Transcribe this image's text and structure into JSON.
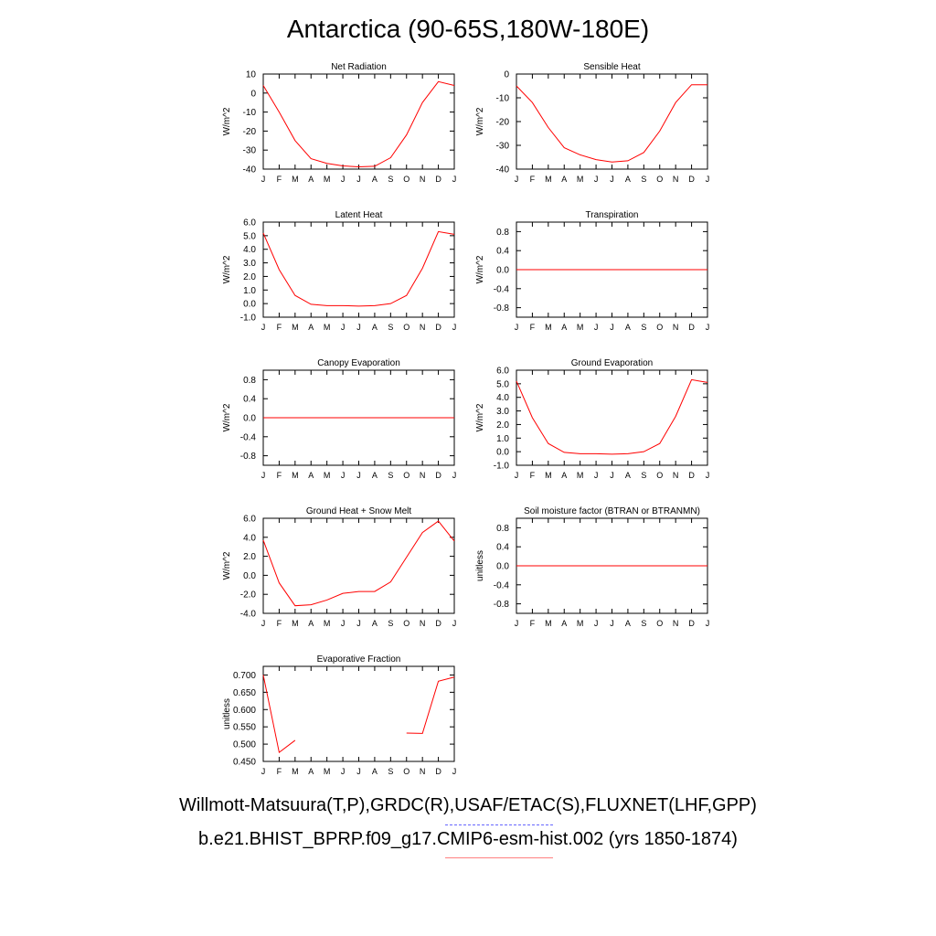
{
  "title": "Antarctica (90-65S,180W-180E)",
  "legend": {
    "observations": "Willmott-Matsuura(T,P),GRDC(R),USAF/ETAC(S),FLUXNET(LHF,GPP)",
    "model": "b.e21.BHIST_BPRP.f09_g17.CMIP6-esm-hist.002 (yrs 1850-1874)",
    "observations_color": "#6666ff",
    "model_color": "#ff0000"
  },
  "chart_data": [
    {
      "type": "line",
      "title": "Net Radiation",
      "ylabel": "W/m^2",
      "ylim": [
        -40,
        10
      ],
      "yticks": [
        {
          "v": 10,
          "t": "10"
        },
        {
          "v": 0,
          "t": "0"
        },
        {
          "v": -10,
          "t": "-10"
        },
        {
          "v": -20,
          "t": "-20"
        },
        {
          "v": -30,
          "t": "-30"
        },
        {
          "v": -40,
          "t": "-40"
        }
      ],
      "x": [
        "J",
        "F",
        "M",
        "A",
        "M",
        "J",
        "J",
        "A",
        "S",
        "O",
        "N",
        "D",
        "J"
      ],
      "series": [
        {
          "color": "#ff0000",
          "values": [
            4,
            -10,
            -25,
            -34.5,
            -37,
            -38.3,
            -38.8,
            -38.5,
            -34,
            -22,
            -5,
            6,
            4
          ]
        }
      ]
    },
    {
      "type": "line",
      "title": "Sensible Heat",
      "ylabel": "W/m^2",
      "ylim": [
        -40,
        0
      ],
      "yticks": [
        {
          "v": 0,
          "t": "0"
        },
        {
          "v": -10,
          "t": "-10"
        },
        {
          "v": -20,
          "t": "-20"
        },
        {
          "v": -30,
          "t": "-30"
        },
        {
          "v": -40,
          "t": "-40"
        }
      ],
      "x": [
        "J",
        "F",
        "M",
        "A",
        "M",
        "J",
        "J",
        "A",
        "S",
        "O",
        "N",
        "D",
        "J"
      ],
      "series": [
        {
          "color": "#ff0000",
          "values": [
            -5,
            -12,
            -22.5,
            -31,
            -34,
            -36,
            -37,
            -36.5,
            -33,
            -24,
            -12,
            -4.5,
            -4.5
          ]
        }
      ]
    },
    {
      "type": "line",
      "title": "Latent Heat",
      "ylabel": "W/m^2",
      "ylim": [
        -1,
        6
      ],
      "yticks": [
        {
          "v": 6,
          "t": "6.0"
        },
        {
          "v": 5,
          "t": "5.0"
        },
        {
          "v": 4,
          "t": "4.0"
        },
        {
          "v": 3,
          "t": "3.0"
        },
        {
          "v": 2,
          "t": "2.0"
        },
        {
          "v": 1,
          "t": "1.0"
        },
        {
          "v": 0,
          "t": "0.0"
        },
        {
          "v": -1,
          "t": "-1.0"
        }
      ],
      "x": [
        "J",
        "F",
        "M",
        "A",
        "M",
        "J",
        "J",
        "A",
        "S",
        "O",
        "N",
        "D",
        "J"
      ],
      "series": [
        {
          "color": "#ff0000",
          "values": [
            5.2,
            2.5,
            0.6,
            -0.05,
            -0.15,
            -0.15,
            -0.18,
            -0.15,
            0,
            0.6,
            2.6,
            5.3,
            5.1
          ]
        }
      ]
    },
    {
      "type": "line",
      "title": "Transpiration",
      "ylabel": "W/m^2",
      "ylim": [
        -1,
        1
      ],
      "yticks": [
        {
          "v": 0.8,
          "t": "0.8"
        },
        {
          "v": 0.4,
          "t": "0.4"
        },
        {
          "v": 0,
          "t": "0.0"
        },
        {
          "v": -0.4,
          "t": "-0.4"
        },
        {
          "v": -0.8,
          "t": "-0.8"
        }
      ],
      "x": [
        "J",
        "F",
        "M",
        "A",
        "M",
        "J",
        "J",
        "A",
        "S",
        "O",
        "N",
        "D",
        "J"
      ],
      "series": [
        {
          "color": "#ff0000",
          "values": [
            0,
            0,
            0,
            0,
            0,
            0,
            0,
            0,
            0,
            0,
            0,
            0,
            0
          ]
        }
      ]
    },
    {
      "type": "line",
      "title": "Canopy Evaporation",
      "ylabel": "W/m^2",
      "ylim": [
        -1,
        1
      ],
      "yticks": [
        {
          "v": 0.8,
          "t": "0.8"
        },
        {
          "v": 0.4,
          "t": "0.4"
        },
        {
          "v": 0,
          "t": "0.0"
        },
        {
          "v": -0.4,
          "t": "-0.4"
        },
        {
          "v": -0.8,
          "t": "-0.8"
        }
      ],
      "x": [
        "J",
        "F",
        "M",
        "A",
        "M",
        "J",
        "J",
        "A",
        "S",
        "O",
        "N",
        "D",
        "J"
      ],
      "series": [
        {
          "color": "#ff0000",
          "values": [
            0,
            0,
            0,
            0,
            0,
            0,
            0,
            0,
            0,
            0,
            0,
            0,
            0
          ]
        }
      ]
    },
    {
      "type": "line",
      "title": "Ground Evaporation",
      "ylabel": "W/m^2",
      "ylim": [
        -1,
        6
      ],
      "yticks": [
        {
          "v": 6,
          "t": "6.0"
        },
        {
          "v": 5,
          "t": "5.0"
        },
        {
          "v": 4,
          "t": "4.0"
        },
        {
          "v": 3,
          "t": "3.0"
        },
        {
          "v": 2,
          "t": "2.0"
        },
        {
          "v": 1,
          "t": "1.0"
        },
        {
          "v": 0,
          "t": "0.0"
        },
        {
          "v": -1,
          "t": "-1.0"
        }
      ],
      "x": [
        "J",
        "F",
        "M",
        "A",
        "M",
        "J",
        "J",
        "A",
        "S",
        "O",
        "N",
        "D",
        "J"
      ],
      "series": [
        {
          "color": "#ff0000",
          "values": [
            5.2,
            2.5,
            0.6,
            -0.05,
            -0.15,
            -0.15,
            -0.18,
            -0.15,
            0,
            0.6,
            2.6,
            5.3,
            5.1
          ]
        }
      ]
    },
    {
      "type": "line",
      "title": "Ground Heat + Snow Melt",
      "ylabel": "W/m^2",
      "ylim": [
        -4,
        6
      ],
      "yticks": [
        {
          "v": 6,
          "t": "6.0"
        },
        {
          "v": 4,
          "t": "4.0"
        },
        {
          "v": 2,
          "t": "2.0"
        },
        {
          "v": 0,
          "t": "0.0"
        },
        {
          "v": -2,
          "t": "-2.0"
        },
        {
          "v": -4,
          "t": "-4.0"
        }
      ],
      "x": [
        "J",
        "F",
        "M",
        "A",
        "M",
        "J",
        "J",
        "A",
        "S",
        "O",
        "N",
        "D",
        "J"
      ],
      "series": [
        {
          "color": "#ff0000",
          "values": [
            3.7,
            -0.8,
            -3.2,
            -3.1,
            -2.6,
            -1.9,
            -1.7,
            -1.7,
            -0.7,
            1.9,
            4.5,
            5.7,
            3.6
          ]
        }
      ]
    },
    {
      "type": "line",
      "title": "Soil moisture factor (BTRAN or BTRANMN)",
      "ylabel": "unitless",
      "ylim": [
        -1,
        1
      ],
      "yticks": [
        {
          "v": 0.8,
          "t": "0.8"
        },
        {
          "v": 0.4,
          "t": "0.4"
        },
        {
          "v": 0,
          "t": "0.0"
        },
        {
          "v": -0.4,
          "t": "-0.4"
        },
        {
          "v": -0.8,
          "t": "-0.8"
        }
      ],
      "x": [
        "J",
        "F",
        "M",
        "A",
        "M",
        "J",
        "J",
        "A",
        "S",
        "O",
        "N",
        "D",
        "J"
      ],
      "series": [
        {
          "color": "#ff0000",
          "values": [
            0,
            0,
            0,
            0,
            0,
            0,
            0,
            0,
            0,
            0,
            0,
            0,
            0
          ]
        }
      ]
    },
    {
      "type": "line",
      "title": "Evaporative Fraction",
      "ylabel": "unitless",
      "ylim": [
        0.45,
        0.725
      ],
      "yticks": [
        {
          "v": 0.7,
          "t": "0.700"
        },
        {
          "v": 0.65,
          "t": "0.650"
        },
        {
          "v": 0.6,
          "t": "0.600"
        },
        {
          "v": 0.55,
          "t": "0.550"
        },
        {
          "v": 0.5,
          "t": "0.500"
        },
        {
          "v": 0.45,
          "t": "0.450"
        }
      ],
      "x": [
        "J",
        "F",
        "M",
        "A",
        "M",
        "J",
        "J",
        "A",
        "S",
        "O",
        "N",
        "D",
        "J"
      ],
      "series": [
        {
          "color": "#ff0000",
          "values": [
            0.7,
            0.476,
            0.511,
            null,
            null,
            null,
            null,
            null,
            null,
            0.532,
            0.531,
            0.682,
            0.694
          ]
        }
      ]
    }
  ]
}
